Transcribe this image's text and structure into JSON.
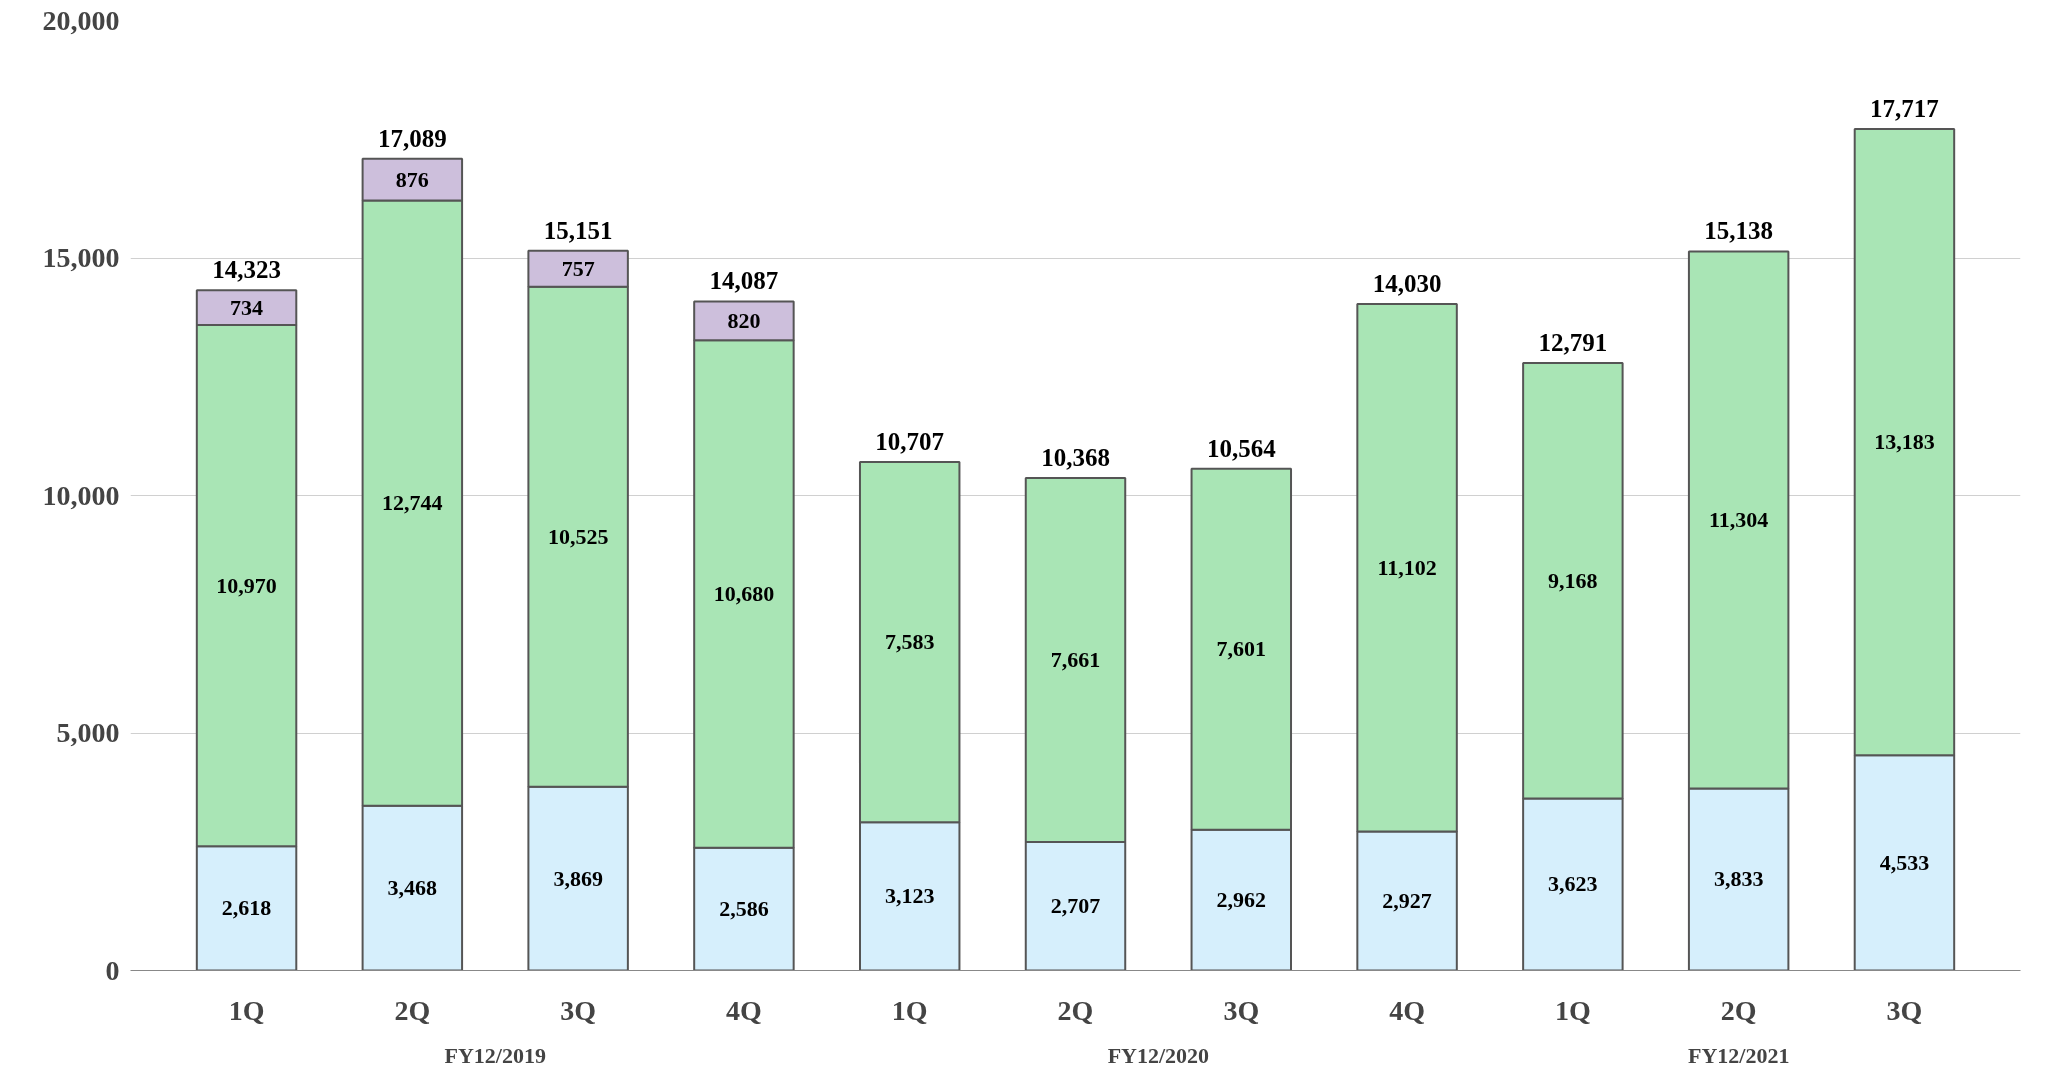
{
  "chart_data": {
    "type": "bar",
    "stacked": true,
    "categories": [
      "1Q",
      "2Q",
      "3Q",
      "4Q",
      "1Q",
      "2Q",
      "3Q",
      "4Q",
      "1Q",
      "2Q",
      "3Q"
    ],
    "series": [
      {
        "color": "#d6effc",
        "values": [
          2618,
          3468,
          3869,
          2586,
          3123,
          2707,
          2962,
          2927,
          3623,
          3833,
          4533
        ],
        "value_labels": [
          "2,618",
          "3,468",
          "3,869",
          "2,586",
          "3,123",
          "2,707",
          "2,962",
          "2,927",
          "3,623",
          "3,833",
          "4,533"
        ]
      },
      {
        "color": "#a9e5b5",
        "values": [
          10970,
          12744,
          10525,
          10680,
          7583,
          7661,
          7601,
          11102,
          9168,
          11304,
          13183
        ],
        "value_labels": [
          "10,970",
          "12,744",
          "10,525",
          "10,680",
          "7,583",
          "7,661",
          "7,601",
          "11,102",
          "9,168",
          "11,304",
          "13,183"
        ]
      },
      {
        "color": "#cdbfdc",
        "values": [
          734,
          876,
          757,
          820,
          null,
          null,
          null,
          null,
          null,
          null,
          null
        ],
        "value_labels": [
          "734",
          "876",
          "757",
          "820",
          null,
          null,
          null,
          null,
          null,
          null,
          null
        ]
      }
    ],
    "totals": [
      "14,323",
      "17,089",
      "15,151",
      "14,087",
      "10,707",
      "10,368",
      "10,564",
      "14,030",
      "12,791",
      "15,138",
      "17,717"
    ],
    "annotations": [
      "FY12/2019",
      "FY12/2020",
      "FY12/2021"
    ],
    "ylim": [
      0,
      20000
    ],
    "yticks": [
      {
        "value": 0,
        "label": "0"
      },
      {
        "value": 5000,
        "label": "5,000"
      },
      {
        "value": 10000,
        "label": "10,000"
      },
      {
        "value": 15000,
        "label": "15,000"
      },
      {
        "value": 20000,
        "label": "20,000"
      }
    ],
    "grid": "y"
  }
}
